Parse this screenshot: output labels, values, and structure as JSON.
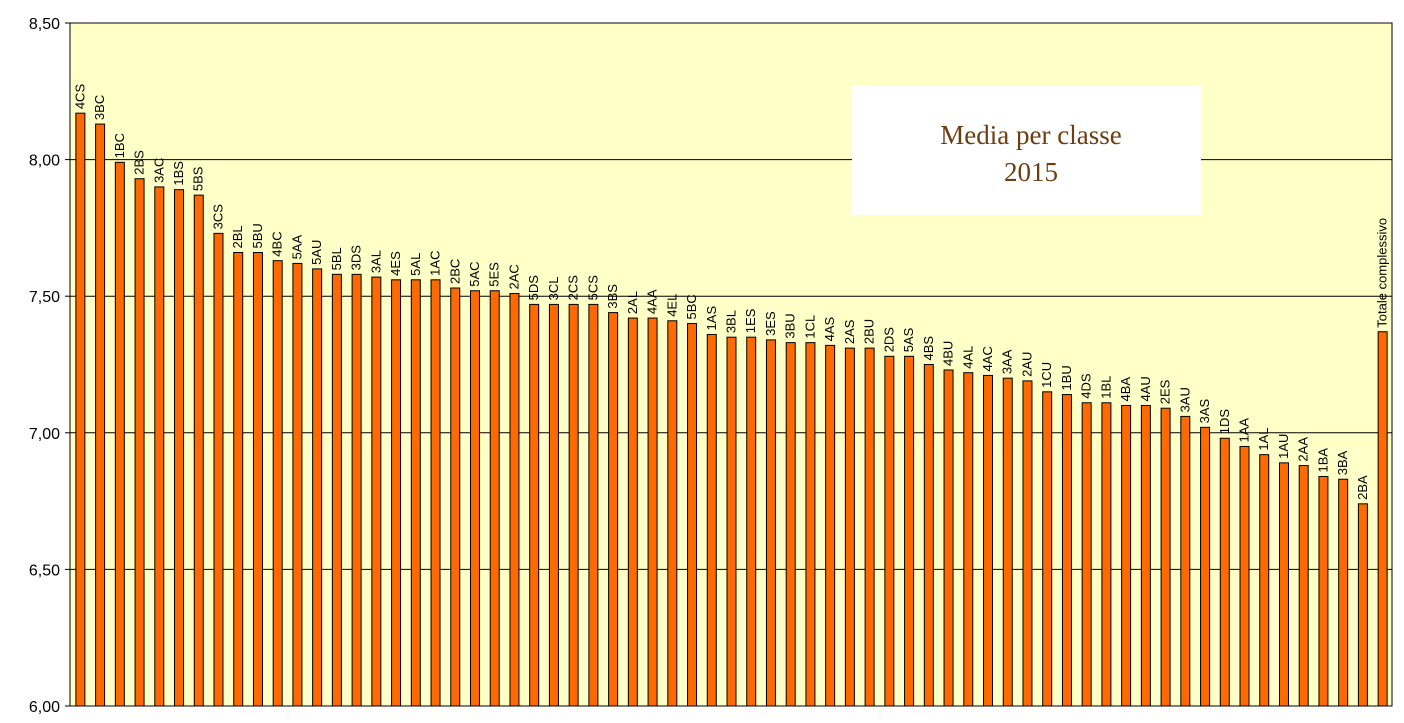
{
  "chart_data": {
    "type": "bar",
    "title": "Media per classe",
    "subtitle": "2015",
    "xlabel": "",
    "ylabel": "",
    "ylim": [
      6.0,
      8.5
    ],
    "yticks": [
      6.0,
      6.5,
      7.0,
      7.5,
      8.0,
      8.5
    ],
    "ytick_labels": [
      "6,00",
      "6,50",
      "7,00",
      "7,50",
      "8,00",
      "8,50"
    ],
    "grid": true,
    "legend": "none",
    "colors": {
      "plot_background": "#ffffc8",
      "bar_fill": "#ff6a00",
      "bar_stroke": "#000000",
      "gridline": "#000000",
      "title_box": "#ffffff",
      "title_text": "#6b3e12"
    },
    "categories": [
      "4CS",
      "3BC",
      "1BC",
      "2BS",
      "3AC",
      "1BS",
      "5BS",
      "3CS",
      "2BL",
      "5BU",
      "4BC",
      "5AA",
      "5AU",
      "5BL",
      "3DS",
      "3AL",
      "4ES",
      "5AL",
      "1AC",
      "2BC",
      "5AC",
      "5ES",
      "2AC",
      "5DS",
      "3CL",
      "2CS",
      "5CS",
      "3BS",
      "2AL",
      "4AA",
      "4EL",
      "5BC",
      "1AS",
      "3BL",
      "1ES",
      "3ES",
      "3BU",
      "1CL",
      "4AS",
      "2AS",
      "2BU",
      "2DS",
      "5AS",
      "4BS",
      "4BU",
      "4AL",
      "4AC",
      "3AA",
      "2AU",
      "1CU",
      "1BU",
      "4DS",
      "1BL",
      "4BA",
      "4AU",
      "2ES",
      "3AU",
      "3AS",
      "1DS",
      "1AA",
      "1AL",
      "1AU",
      "2AA",
      "1BA",
      "3BA",
      "2BA",
      "Totale complessivo"
    ],
    "values": [
      8.17,
      8.13,
      7.99,
      7.93,
      7.9,
      7.89,
      7.87,
      7.73,
      7.66,
      7.66,
      7.63,
      7.62,
      7.6,
      7.58,
      7.58,
      7.57,
      7.56,
      7.56,
      7.56,
      7.53,
      7.52,
      7.52,
      7.51,
      7.47,
      7.47,
      7.47,
      7.47,
      7.44,
      7.42,
      7.42,
      7.41,
      7.4,
      7.36,
      7.35,
      7.35,
      7.34,
      7.33,
      7.33,
      7.32,
      7.31,
      7.31,
      7.28,
      7.28,
      7.25,
      7.23,
      7.22,
      7.21,
      7.2,
      7.19,
      7.15,
      7.14,
      7.11,
      7.11,
      7.1,
      7.1,
      7.09,
      7.06,
      7.02,
      6.98,
      6.95,
      6.92,
      6.89,
      6.88,
      6.84,
      6.83,
      6.74,
      7.37
    ]
  }
}
